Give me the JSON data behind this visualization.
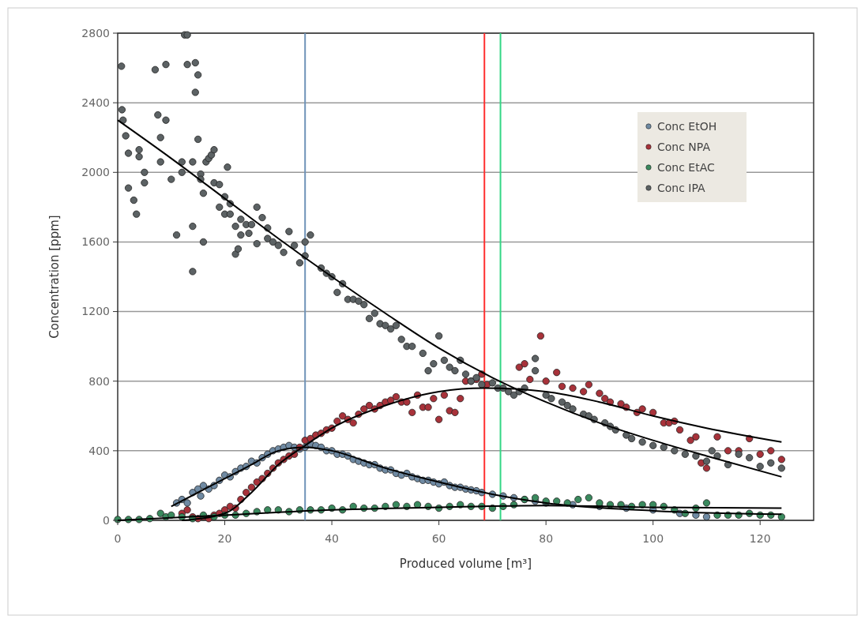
{
  "chart_data": {
    "type": "scatter",
    "xlabel": "Produced volume [m³]",
    "ylabel": "Concentration [ppm]",
    "xlim": [
      0,
      130
    ],
    "xticks": [
      0,
      20,
      40,
      60,
      80,
      100,
      120
    ],
    "ylim": [
      0,
      2800
    ],
    "yticks": [
      0,
      400,
      800,
      1200,
      1600,
      2000,
      2400,
      2800
    ],
    "grid": "y",
    "legend": "top right",
    "marker": "circle",
    "series": [
      {
        "name": "Conc EtOH",
        "color": "#6f8aa3",
        "x": [
          11,
          12,
          13,
          14,
          15,
          15.5,
          16,
          17,
          18,
          19,
          20,
          21,
          22,
          23,
          24,
          25,
          26,
          27,
          28,
          29,
          30,
          31,
          32,
          33,
          34,
          35,
          36,
          37,
          38,
          39,
          40,
          41,
          42,
          43,
          44,
          45,
          46,
          47,
          48,
          49,
          50,
          51,
          52,
          53,
          54,
          55,
          56,
          57,
          58,
          59,
          60,
          61,
          62,
          63,
          64,
          65,
          66,
          67,
          68,
          70,
          72,
          74,
          76,
          78,
          80,
          85,
          90,
          95,
          100,
          105,
          108,
          110
        ],
        "values": [
          100,
          120,
          100,
          160,
          180,
          140,
          200,
          180,
          200,
          230,
          260,
          250,
          280,
          300,
          310,
          340,
          330,
          360,
          380,
          400,
          410,
          420,
          430,
          420,
          410,
          420,
          440,
          430,
          420,
          400,
          400,
          380,
          380,
          370,
          350,
          340,
          330,
          320,
          320,
          300,
          290,
          290,
          270,
          260,
          270,
          250,
          240,
          230,
          230,
          220,
          210,
          220,
          200,
          190,
          190,
          180,
          175,
          170,
          160,
          150,
          140,
          130,
          120,
          110,
          100,
          90,
          80,
          70,
          60,
          40,
          30,
          20
        ]
      },
      {
        "name": "Conc NPA",
        "color": "#a8323a",
        "x": [
          12,
          13,
          14,
          15,
          16,
          17,
          18,
          19,
          20,
          21,
          22,
          23,
          24,
          25,
          26,
          27,
          28,
          29,
          30,
          31,
          32,
          33,
          34,
          35,
          36,
          37,
          38,
          39,
          40,
          41,
          42,
          43,
          44,
          45,
          46,
          47,
          48,
          49,
          50,
          51,
          52,
          53,
          54,
          55,
          56,
          57,
          58,
          59,
          60,
          61,
          62,
          63,
          64,
          65,
          66,
          67,
          68,
          69,
          75,
          76,
          77,
          79,
          80,
          82,
          83,
          85,
          87,
          88,
          90,
          91,
          92,
          94,
          95,
          97,
          98,
          100,
          102,
          103,
          104,
          105,
          107,
          108,
          109,
          110,
          112,
          114,
          116,
          118,
          120,
          122,
          124
        ],
        "values": [
          40,
          60,
          20,
          10,
          20,
          10,
          30,
          40,
          60,
          80,
          70,
          120,
          160,
          190,
          220,
          240,
          270,
          300,
          330,
          350,
          370,
          380,
          420,
          460,
          470,
          490,
          500,
          520,
          530,
          570,
          600,
          580,
          560,
          610,
          640,
          660,
          640,
          660,
          680,
          690,
          710,
          680,
          680,
          620,
          720,
          650,
          650,
          700,
          580,
          720,
          630,
          620,
          700,
          800,
          800,
          810,
          840,
          780,
          880,
          900,
          810,
          1060,
          800,
          850,
          770,
          760,
          740,
          780,
          730,
          700,
          680,
          670,
          650,
          620,
          640,
          620,
          560,
          560,
          570,
          520,
          460,
          480,
          330,
          300,
          480,
          400,
          400,
          470,
          380,
          400,
          350
        ]
      },
      {
        "name": "Conc EtAC",
        "color": "#3a8a5e",
        "x": [
          0,
          2,
          4,
          6,
          8,
          9,
          10,
          12,
          14,
          16,
          18,
          20,
          22,
          24,
          26,
          28,
          30,
          32,
          34,
          36,
          38,
          40,
          42,
          44,
          46,
          48,
          50,
          52,
          54,
          56,
          58,
          60,
          62,
          64,
          66,
          68,
          70,
          72,
          74,
          76,
          78,
          80,
          82,
          84,
          86,
          88,
          90,
          92,
          94,
          96,
          98,
          100,
          102,
          104,
          106,
          108,
          110,
          112,
          114,
          116,
          118,
          120,
          122,
          124
        ],
        "values": [
          5,
          5,
          5,
          10,
          40,
          20,
          30,
          20,
          10,
          30,
          20,
          30,
          30,
          40,
          50,
          60,
          60,
          50,
          60,
          60,
          60,
          70,
          60,
          80,
          70,
          70,
          80,
          90,
          80,
          90,
          80,
          70,
          80,
          90,
          80,
          80,
          70,
          80,
          90,
          120,
          130,
          110,
          110,
          100,
          120,
          130,
          100,
          90,
          90,
          80,
          90,
          90,
          80,
          60,
          40,
          70,
          100,
          30,
          30,
          30,
          40,
          30,
          30,
          20
        ]
      },
      {
        "name": "Conc IPA",
        "color": "#5c6264",
        "x": [
          0.7,
          0.8,
          1,
          1.5,
          2,
          2,
          3,
          3.5,
          4,
          4,
          5,
          5,
          7,
          7.5,
          8,
          8,
          9,
          9,
          10,
          11,
          12,
          12,
          12.5,
          13,
          13,
          14,
          14,
          14,
          14.5,
          14.5,
          15,
          15,
          15.5,
          15.5,
          16,
          16,
          16.5,
          17,
          17.5,
          18,
          18,
          19,
          19,
          20,
          20,
          20.5,
          21,
          21,
          22,
          22,
          22.5,
          23,
          23,
          24,
          24.5,
          25,
          26,
          26,
          27,
          28,
          28,
          29,
          30,
          31,
          32,
          33,
          34,
          35,
          35,
          36,
          38,
          39,
          40,
          41,
          42,
          43,
          44,
          45,
          46,
          47,
          48,
          49,
          50,
          51,
          52,
          53,
          54,
          55,
          57,
          58,
          59,
          60,
          61,
          62,
          63,
          64,
          65,
          66,
          67,
          68,
          70,
          71,
          72,
          73,
          74,
          75,
          76,
          78,
          78,
          80,
          81,
          83,
          84,
          85,
          87,
          88,
          89,
          91,
          92,
          93,
          95,
          96,
          98,
          100,
          102,
          104,
          106,
          108,
          110,
          111,
          112,
          114,
          116,
          118,
          120,
          122,
          124
        ],
        "values": [
          2610,
          2360,
          2300,
          2210,
          2110,
          1910,
          1840,
          1760,
          2090,
          2130,
          1940,
          2000,
          2590,
          2330,
          2200,
          2060,
          2300,
          2620,
          1960,
          1640,
          2060,
          2000,
          2790,
          2790,
          2620,
          2060,
          1690,
          1430,
          2460,
          2630,
          2560,
          2190,
          1990,
          1960,
          1600,
          1880,
          2060,
          2080,
          2100,
          1940,
          2130,
          1930,
          1800,
          1860,
          1760,
          2030,
          1820,
          1760,
          1690,
          1530,
          1560,
          1640,
          1730,
          1700,
          1650,
          1700,
          1800,
          1590,
          1740,
          1680,
          1620,
          1600,
          1580,
          1540,
          1660,
          1580,
          1480,
          1520,
          1600,
          1640,
          1450,
          1420,
          1400,
          1310,
          1360,
          1270,
          1270,
          1260,
          1240,
          1160,
          1190,
          1130,
          1120,
          1100,
          1120,
          1040,
          1000,
          1000,
          960,
          860,
          900,
          1060,
          920,
          880,
          860,
          920,
          840,
          800,
          820,
          780,
          790,
          760,
          760,
          740,
          720,
          740,
          760,
          930,
          860,
          720,
          700,
          680,
          660,
          640,
          610,
          600,
          580,
          560,
          540,
          520,
          490,
          470,
          450,
          430,
          420,
          400,
          380,
          370,
          340,
          400,
          370,
          320,
          380,
          360,
          310,
          330,
          300
        ]
      },
      {
        "type": "line",
        "marker": "none",
        "color": "#000000",
        "x": [
          0,
          10,
          20,
          30,
          40,
          50,
          60,
          70,
          80,
          90,
          100,
          110,
          124
        ],
        "values": [
          2300,
          2080,
          1850,
          1620,
          1400,
          1190,
          990,
          820,
          680,
          560,
          460,
          370,
          250
        ]
      },
      {
        "type": "line",
        "marker": "none",
        "color": "#000000",
        "x": [
          12,
          20,
          25,
          30,
          35,
          40,
          50,
          60,
          68.5,
          80,
          90,
          100,
          110,
          124
        ],
        "values": [
          0,
          40,
          160,
          320,
          430,
          530,
          660,
          740,
          760,
          740,
          680,
          600,
          530,
          450
        ]
      },
      {
        "type": "line",
        "marker": "none",
        "color": "#000000",
        "x": [
          10,
          15,
          20,
          25,
          30,
          35,
          40,
          50,
          60,
          70,
          80,
          100,
          124
        ],
        "values": [
          80,
          160,
          240,
          320,
          400,
          420,
          400,
          300,
          220,
          150,
          100,
          55,
          35
        ]
      },
      {
        "type": "line",
        "marker": "none",
        "color": "#000000",
        "x": [
          0,
          20,
          40,
          60,
          80,
          100,
          124
        ],
        "values": [
          0,
          30,
          60,
          75,
          85,
          75,
          70
        ]
      }
    ],
    "ref_lines": [
      {
        "axis": "x",
        "value": 35,
        "color": "#6f93b8"
      },
      {
        "axis": "x",
        "value": 68.5,
        "color": "#ff3030"
      },
      {
        "axis": "x",
        "value": 71.5,
        "color": "#33d685"
      }
    ]
  }
}
